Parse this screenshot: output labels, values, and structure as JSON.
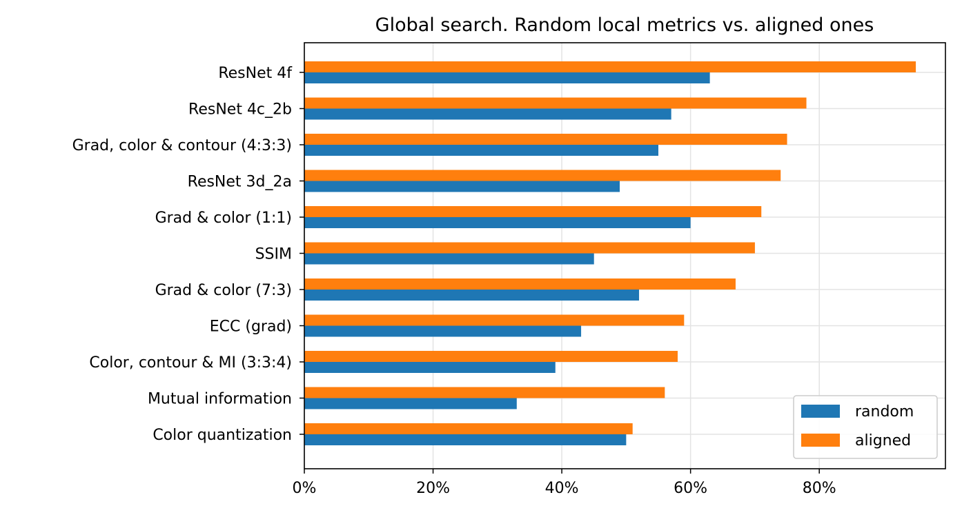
{
  "chart_data": {
    "type": "bar",
    "orientation": "horizontal",
    "title": "Global search. Random local metrics vs. aligned ones",
    "xlabel": "",
    "ylabel": "",
    "xlim": [
      0,
      99.6
    ],
    "x_ticks": [
      0,
      20,
      40,
      60,
      80
    ],
    "x_tick_labels": [
      "0%",
      "20%",
      "40%",
      "60%",
      "80%"
    ],
    "grid": true,
    "legend_position": "bottom-right",
    "categories": [
      "ResNet 4f",
      "ResNet 4c_2b",
      "Grad, color & contour (4:3:3)",
      "ResNet 3d_2a",
      "Grad & color (1:1)",
      "SSIM",
      "Grad & color (7:3)",
      "ECC (grad)",
      "Color, contour & MI (3:3:4)",
      "Mutual information",
      "Color quantization"
    ],
    "series": [
      {
        "name": "random",
        "color": "#1f77b4",
        "values": [
          63,
          57,
          55,
          49,
          60,
          45,
          52,
          43,
          39,
          33,
          50
        ]
      },
      {
        "name": "aligned",
        "color": "#ff7f0e",
        "values": [
          95,
          78,
          75,
          74,
          71,
          70,
          67,
          59,
          58,
          56,
          51
        ]
      }
    ]
  }
}
